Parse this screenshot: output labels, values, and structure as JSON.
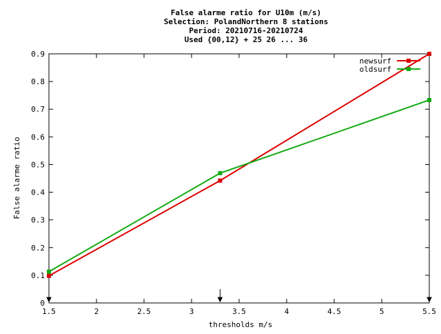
{
  "chart_data": {
    "type": "line",
    "title_lines": [
      "False alarme ratio  for U10m (m/s)",
      "Selection: PolandNorthern      8 stations",
      "Period: 20210716-20210724",
      "Used {00,12} + 25 26 ... 36"
    ],
    "xlabel": "thresholds m/s",
    "ylabel": "False alarme ratio",
    "xlim": [
      1.5,
      5.5
    ],
    "ylim": [
      0,
      0.9
    ],
    "x_ticks": [
      1.5,
      2,
      2.5,
      3,
      3.5,
      4,
      4.5,
      5,
      5.5
    ],
    "x_tick_labels": [
      "1.5",
      "2",
      "2.5",
      "3",
      "3.5",
      "4",
      "4.5",
      "5",
      "5.5"
    ],
    "y_ticks": [
      0,
      0.1,
      0.2,
      0.3,
      0.4,
      0.5,
      0.6,
      0.7,
      0.8,
      0.9
    ],
    "y_tick_labels": [
      "0",
      "0.1",
      "0.2",
      "0.3",
      "0.4",
      "0.5",
      "0.6",
      "0.7",
      "0.8",
      "0.9"
    ],
    "grid": false,
    "legend_position": "top-right",
    "arrow_markers_x": [
      1.5,
      3.3,
      5.5
    ],
    "series": [
      {
        "name": "newsurf",
        "color": "#dd0000",
        "x": [
          1.5,
          3.3,
          5.5
        ],
        "y": [
          0.098,
          0.442,
          0.9
        ]
      },
      {
        "name": "oldsurf",
        "color": "#11aa11",
        "x": [
          1.5,
          3.3,
          5.5
        ],
        "y": [
          0.113,
          0.469,
          0.733
        ]
      }
    ]
  }
}
